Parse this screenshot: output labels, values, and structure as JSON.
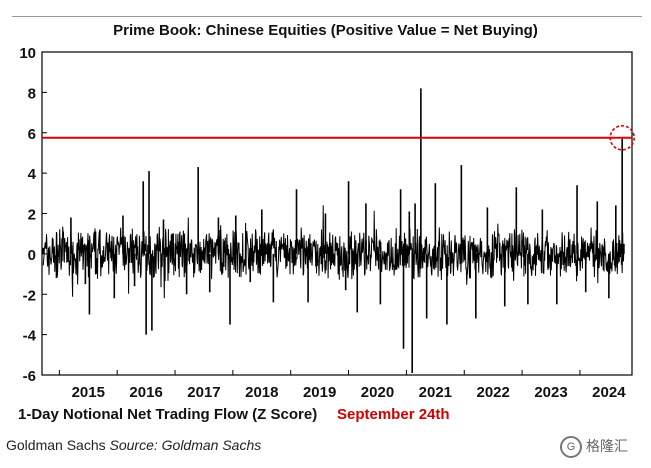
{
  "chart_data": {
    "type": "line",
    "title": "Prime Book: Chinese Equities (Positive Value = Net Buying)",
    "xlabel": "1-Day Notional Net Trading Flow (Z Score)",
    "annotation": "September 24th",
    "ylim": [
      -6,
      10
    ],
    "yticks": [
      -6,
      -4,
      -2,
      0,
      2,
      4,
      6,
      8,
      10
    ],
    "xticks": [
      "2015",
      "2016",
      "2017",
      "2018",
      "2019",
      "2020",
      "2021",
      "2022",
      "2023",
      "2024"
    ],
    "xrange": [
      2014.7,
      2024.9
    ],
    "reference_line": 5.75,
    "highlight": {
      "x": 2024.73,
      "y": 5.75
    },
    "series": [
      {
        "points": [
          [
            2014.72,
            0.3
          ],
          [
            2014.95,
            -1.2
          ],
          [
            2015.2,
            1.8
          ],
          [
            2015.45,
            -1.5
          ],
          [
            2015.52,
            -3.0
          ],
          [
            2015.7,
            1.2
          ],
          [
            2015.95,
            -2.2
          ],
          [
            2016.1,
            1.9
          ],
          [
            2016.3,
            -1.6
          ],
          [
            2016.45,
            3.6
          ],
          [
            2016.5,
            -4.0
          ],
          [
            2016.55,
            4.1
          ],
          [
            2016.6,
            -3.8
          ],
          [
            2016.8,
            1.7
          ],
          [
            2016.95,
            1.0
          ],
          [
            2017.2,
            -2.0
          ],
          [
            2017.4,
            4.3
          ],
          [
            2017.6,
            -1.9
          ],
          [
            2017.75,
            1.8
          ],
          [
            2017.95,
            -3.5
          ],
          [
            2018.05,
            1.9
          ],
          [
            2018.3,
            -1.4
          ],
          [
            2018.5,
            2.2
          ],
          [
            2018.7,
            -2.4
          ],
          [
            2019.1,
            3.2
          ],
          [
            2019.3,
            -2.4
          ],
          [
            2019.6,
            2.0
          ],
          [
            2019.95,
            -1.8
          ],
          [
            2020.0,
            3.6
          ],
          [
            2020.15,
            -2.9
          ],
          [
            2020.3,
            2.5
          ],
          [
            2020.55,
            -2.5
          ],
          [
            2020.9,
            3.2
          ],
          [
            2020.95,
            -4.7
          ],
          [
            2021.05,
            2.1
          ],
          [
            2021.1,
            -5.9
          ],
          [
            2021.15,
            2.5
          ],
          [
            2021.25,
            8.2
          ],
          [
            2021.35,
            -3.2
          ],
          [
            2021.5,
            3.5
          ],
          [
            2021.7,
            -3.5
          ],
          [
            2021.95,
            4.4
          ],
          [
            2022.2,
            -3.2
          ],
          [
            2022.4,
            2.3
          ],
          [
            2022.7,
            -2.6
          ],
          [
            2022.9,
            3.3
          ],
          [
            2023.1,
            -2.5
          ],
          [
            2023.35,
            2.2
          ],
          [
            2023.6,
            -2.5
          ],
          [
            2023.95,
            3.4
          ],
          [
            2024.1,
            -1.9
          ],
          [
            2024.3,
            2.6
          ],
          [
            2024.5,
            -2.2
          ],
          [
            2024.62,
            2.4
          ],
          [
            2024.73,
            5.7
          ],
          [
            2024.76,
            0.5
          ]
        ]
      }
    ]
  },
  "footer": {
    "left_text": "Goldman Sachs",
    "source_text": "Source: Goldman Sachs"
  },
  "watermark": {
    "icon": "gelonghui-logo-icon",
    "text": "格隆汇"
  }
}
